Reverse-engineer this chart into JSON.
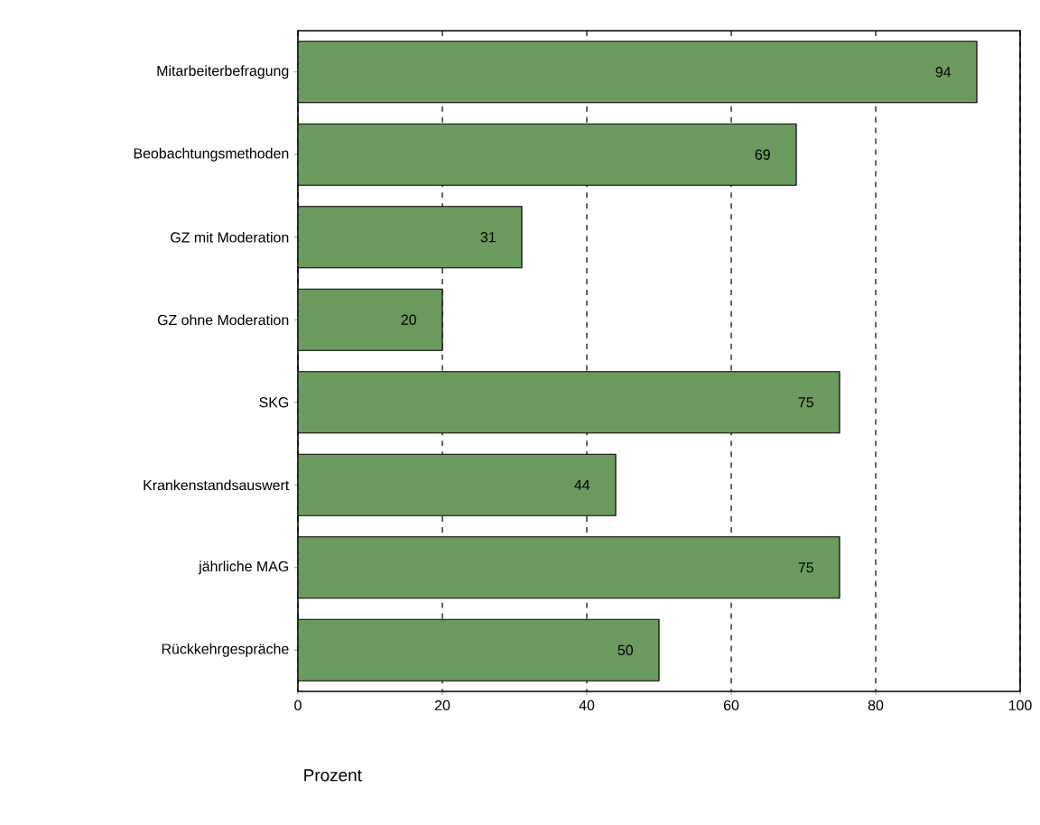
{
  "chart_data": {
    "type": "bar",
    "orientation": "horizontal",
    "xlabel": "Prozent",
    "categories": [
      "Mitarbeiterbefragung",
      "Beobachtungsmethoden",
      "GZ mit Moderation",
      "GZ ohne Moderation",
      "SKG",
      "Krankenstandsauswert",
      "jährliche MAG",
      "Rückkehrgespräche"
    ],
    "values": [
      94,
      69,
      31,
      20,
      75,
      44,
      75,
      50
    ],
    "color": "#6b9a5e",
    "data_labels": true,
    "grid": "x",
    "xlim": [
      0,
      100
    ],
    "xticks": [
      0,
      20,
      40,
      60,
      80,
      100
    ]
  }
}
